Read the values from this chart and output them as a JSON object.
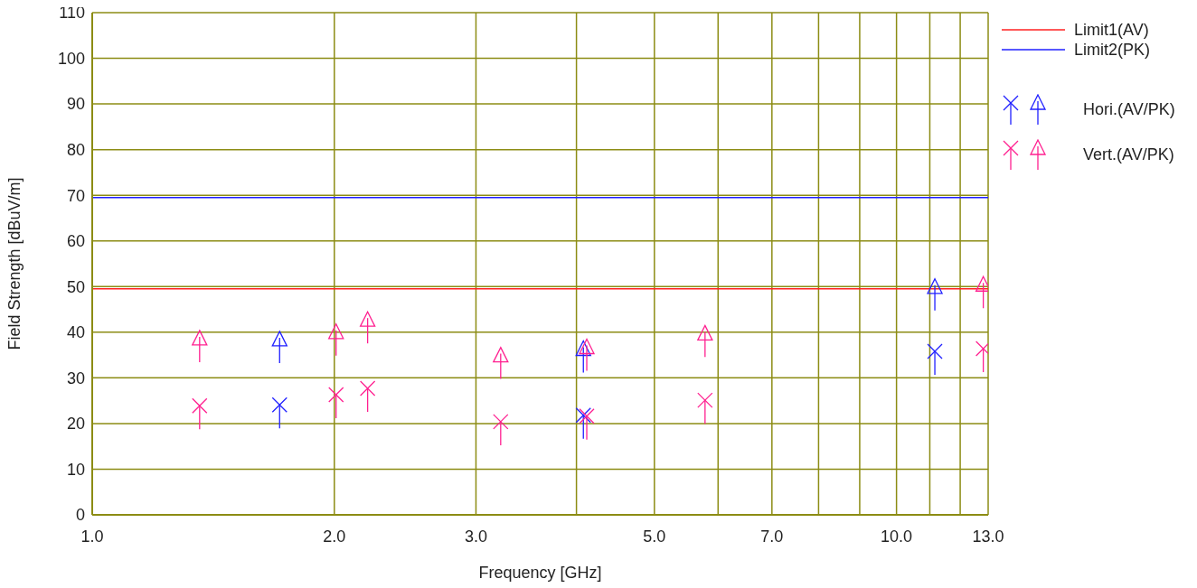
{
  "chart_data": {
    "type": "scatter",
    "xlabel": "Frequency [GHz]",
    "ylabel": "Field Strength [dBuV/m]",
    "log": "x",
    "xlim": [
      1,
      13
    ],
    "ylim": [
      0,
      110
    ],
    "xticks": [
      {
        "value": 1,
        "label": "1.0"
      },
      {
        "value": 2,
        "label": "2.0"
      },
      {
        "value": 3,
        "label": "3.0"
      },
      {
        "value": 4,
        "label": null
      },
      {
        "value": 5,
        "label": "5.0"
      },
      {
        "value": 6,
        "label": null
      },
      {
        "value": 7,
        "label": "7.0"
      },
      {
        "value": 8,
        "label": null
      },
      {
        "value": 9,
        "label": null
      },
      {
        "value": 10,
        "label": "10.0"
      },
      {
        "value": 11,
        "label": null
      },
      {
        "value": 12,
        "label": null
      },
      {
        "value": 13,
        "label": "13.0"
      }
    ],
    "yticks": [
      0,
      10,
      20,
      30,
      40,
      50,
      60,
      70,
      80,
      90,
      100,
      110
    ],
    "grid": true,
    "legend": "top right",
    "ref_lines": [
      {
        "axis": "y",
        "value": 49.5,
        "label": "Limit1(AV)",
        "color": "#ff2020"
      },
      {
        "axis": "y",
        "value": 69.5,
        "label": "Limit2(PK)",
        "color": "#2020ff"
      }
    ],
    "series": [
      {
        "name": "Hori.(AV/PK)",
        "color": "#2020ff",
        "marker": "cross",
        "x": [
          1.71,
          4.08,
          11.16
        ],
        "values": [
          24.1,
          21.8,
          35.8
        ]
      },
      {
        "color": "#2020ff",
        "marker": "triangle",
        "x": [
          1.71,
          4.08,
          11.16
        ],
        "values": [
          38.4,
          36.3,
          49.9
        ]
      },
      {
        "name": "Vert.(AV/PK)",
        "color": "#ff2090",
        "marker": "cross",
        "x": [
          1.36,
          2.01,
          2.2,
          3.22,
          4.12,
          5.78,
          12.82
        ],
        "values": [
          23.9,
          26.3,
          27.7,
          20.4,
          21.6,
          25.1,
          36.4
        ]
      },
      {
        "color": "#ff2090",
        "marker": "triangle",
        "x": [
          1.36,
          2.01,
          2.2,
          3.22,
          4.12,
          5.78,
          12.82
        ],
        "values": [
          38.6,
          40.0,
          42.7,
          34.9,
          36.7,
          39.7,
          50.4
        ]
      }
    ]
  }
}
